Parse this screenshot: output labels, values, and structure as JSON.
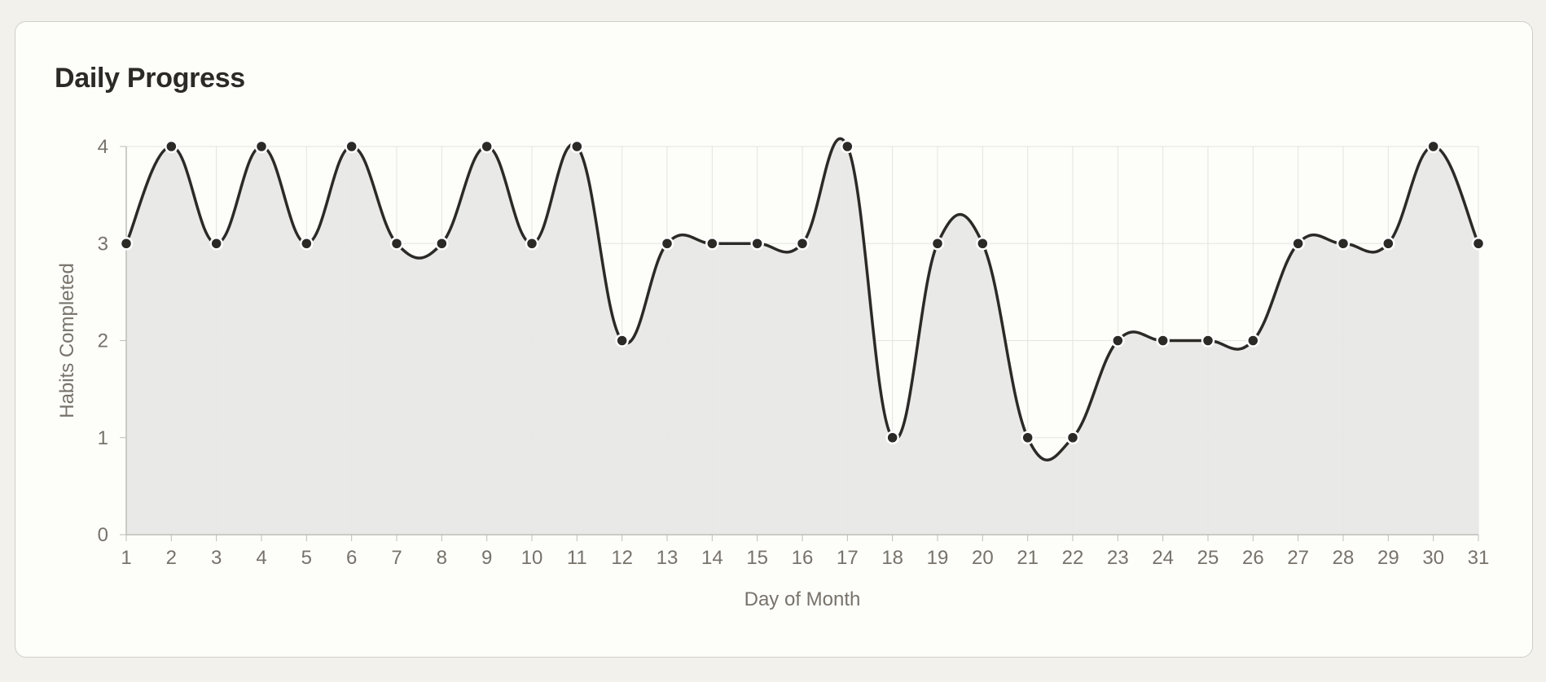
{
  "card": {
    "title": "Daily Progress"
  },
  "chart_data": {
    "type": "area",
    "title": "Daily Progress",
    "xlabel": "Day of Month",
    "ylabel": "Habits Completed",
    "x": [
      1,
      2,
      3,
      4,
      5,
      6,
      7,
      8,
      9,
      10,
      11,
      12,
      13,
      14,
      15,
      16,
      17,
      18,
      19,
      20,
      21,
      22,
      23,
      24,
      25,
      26,
      27,
      28,
      29,
      30,
      31
    ],
    "series": [
      {
        "values": [
          3,
          4,
          3,
          4,
          3,
          4,
          3,
          3,
          4,
          3,
          4,
          2,
          3,
          3,
          3,
          3,
          4,
          1,
          3,
          3,
          1,
          1,
          2,
          2,
          2,
          2,
          3,
          3,
          3,
          4,
          3
        ]
      }
    ],
    "yticks": [
      0,
      1,
      2,
      3,
      4
    ],
    "ylim": [
      0,
      4
    ],
    "xlim": [
      1,
      31
    ],
    "grid": true,
    "legend": "none",
    "colors": {
      "line": "#2b2a27",
      "fill": "#e8e8e6",
      "point": "#2b2a27",
      "point_stroke": "#ffffff",
      "grid": "#e3e3e0",
      "axis": "#bdbdb8",
      "label": "#77736b"
    }
  }
}
